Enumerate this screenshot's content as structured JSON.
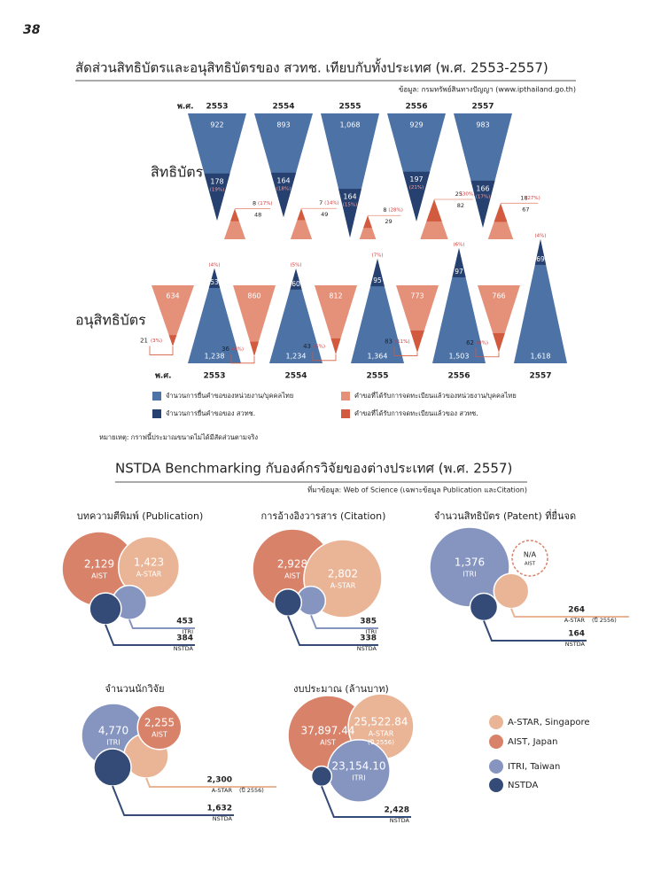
{
  "page_number": "38",
  "patents": {
    "title": "สัดส่วนสิทธิบัตรและอนุสิทธิบัตรของ สวทช. เทียบกับทั้งประเทศ (พ.ศ. 2553-2557)",
    "source": "ข้อมูล: กรมทรัพย์สินทางปัญญา (www.ipthailand.go.th)",
    "year_label": "พ.ศ.",
    "years": [
      "2553",
      "2554",
      "2555",
      "2556",
      "2557"
    ],
    "patent": {
      "label": "สิทธิบัตร",
      "filed": [
        922,
        893,
        1068,
        929,
        983
      ],
      "filed_labels": [
        "922",
        "893",
        "1,068",
        "929",
        "983"
      ],
      "filed_nstda": [
        178,
        164,
        164,
        197,
        166
      ],
      "filed_nstda_share": [
        "(19%)",
        "(18%)",
        "(15%)",
        "(21%)",
        "(17%)"
      ],
      "granted": [
        48,
        49,
        29,
        82,
        67
      ],
      "granted_nstda": [
        8,
        7,
        8,
        25,
        18
      ],
      "granted_nstda_share": [
        "(17%)",
        "(14%)",
        "(28%)",
        "(30%)",
        "(27%)"
      ]
    },
    "petty": {
      "label": "อนุสิทธิบัตร",
      "filed": [
        1238,
        1234,
        1364,
        1503,
        1618
      ],
      "filed_labels": [
        "1,238",
        "1,234",
        "1,364",
        "1,503",
        "1,618"
      ],
      "filed_nstda": [
        53,
        60,
        95,
        97,
        69
      ],
      "filed_nstda_share": [
        "(4%)",
        "(5%)",
        "(7%)",
        "(6%)",
        "(4%)"
      ],
      "granted": [
        634,
        860,
        812,
        773,
        766
      ],
      "granted_nstda": [
        21,
        36,
        43,
        83,
        62
      ],
      "granted_nstda_share": [
        "(3%)",
        "(4%)",
        "(5%)",
        "(11%)",
        "(8%)"
      ]
    },
    "legend": [
      "จำนวนการยื่นคำขอของหน่วยงาน/บุคคลไทย",
      "จำนวนการยื่นคำขอของ สวทช.",
      "คำขอที่ได้รับการจดทะเบียนแล้วของหน่วยงาน/บุคคลไทย",
      "คำขอที่ได้รับการจดทะเบียนแล้วของ สวทช."
    ],
    "colors": [
      "#4c72a6",
      "#26406f",
      "#e5917a",
      "#d25a3e"
    ],
    "note": "หมายเหตุ: กราฟนี้ประมาณขนาดไม่ได้มีสัดส่วนตามจริง"
  },
  "benchmark": {
    "title": "NSTDA Benchmarking กับองค์กรวิจัยของต่างประเทศ (พ.ศ. 2557)",
    "source": "ที่มาข้อมูล: Web of Science (เฉพาะข้อมูล Publication และCitation)",
    "orgs": [
      "A-STAR",
      "AIST",
      "ITRI",
      "NSTDA"
    ],
    "colors": [
      "#eab597",
      "#d9826a",
      "#8595c0",
      "#344b78"
    ],
    "legend": [
      "A-STAR, Singapore",
      "AIST, Japan",
      "ITRI, Taiwan",
      "NSTDA"
    ],
    "panels": [
      {
        "title": "บทความตีพิมพ์ (Publication)",
        "values": [
          1423,
          2129,
          453,
          384
        ],
        "value_labels": [
          "1,423",
          "2,129",
          "453",
          "384"
        ]
      },
      {
        "title": "การอ้างอิงวารสาร (Citation)",
        "values": [
          2802,
          2928,
          385,
          338
        ],
        "value_labels": [
          "2,802",
          "2,928",
          "385",
          "338"
        ]
      },
      {
        "title": "จำนวนสิทธิบัตร (Patent) ที่ยื่นจด",
        "values": [
          264,
          null,
          1376,
          164
        ],
        "value_labels": [
          "264",
          "N/A",
          "1,376",
          "164"
        ],
        "astar_note": "(ปี 2556)"
      },
      {
        "title": "จำนวนนักวิจัย",
        "values": [
          2300,
          2255,
          4770,
          1632
        ],
        "value_labels": [
          "2,300",
          "2,255",
          "4,770",
          "1,632"
        ],
        "astar_note": "(ปี 2556)"
      },
      {
        "title": "งบประมาณ (ล้านบาท)",
        "values": [
          25522.84,
          37897.44,
          23154.1,
          2428
        ],
        "value_labels": [
          "25,522.84",
          "37,897.44",
          "23,154.10",
          "2,428"
        ],
        "astar_note": "(ปี 2556)"
      }
    ]
  }
}
